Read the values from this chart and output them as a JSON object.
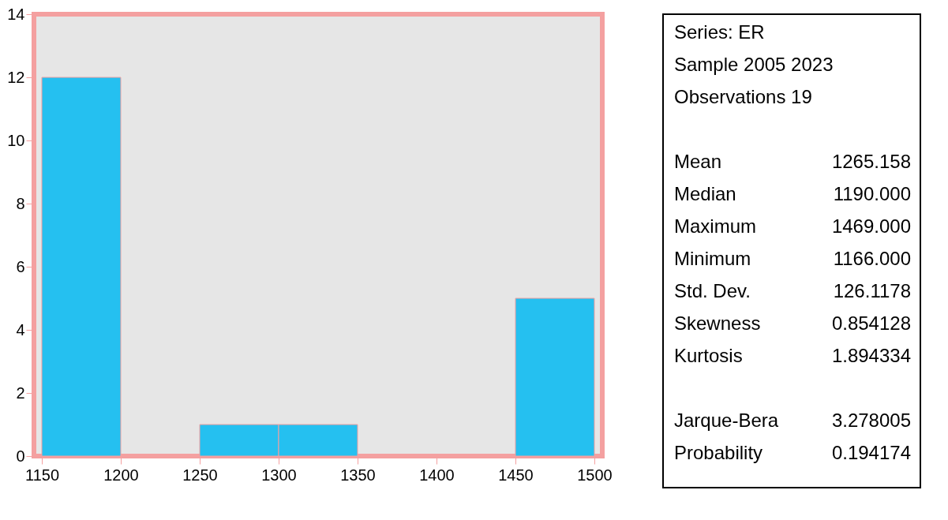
{
  "chart_data": {
    "type": "histogram",
    "bins": [
      1150,
      1200,
      1250,
      1300,
      1350,
      1400,
      1450,
      1500
    ],
    "values": [
      12,
      0,
      1,
      1,
      0,
      0,
      5
    ],
    "color": "#25c0f0",
    "xlim": [
      1145,
      1505
    ],
    "xticks": [
      1150,
      1200,
      1250,
      1300,
      1350,
      1400,
      1450,
      1500
    ],
    "ylim": [
      0,
      14
    ],
    "yticks": [
      0,
      2,
      4,
      6,
      8,
      10,
      12,
      14
    ],
    "grid": false,
    "annotations": [
      "Series: ER",
      "Sample 2005 2023",
      "Observations 19",
      "Mean",
      "1265.158",
      "Median",
      "1190.000",
      "Maximum",
      "1469.000",
      "Minimum",
      "1166.000",
      "Std. Dev.",
      "126.1178",
      "Skewness",
      "0.854128",
      "Kurtosis",
      "1.894334",
      "Jarque-Bera",
      "3.278005",
      "Probability",
      "0.194174"
    ]
  }
}
